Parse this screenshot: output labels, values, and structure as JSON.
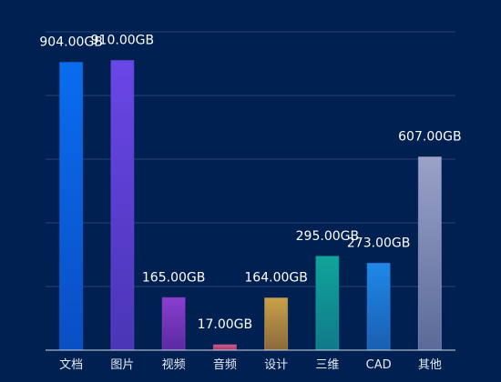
{
  "chart_data": {
    "type": "bar",
    "categories": [
      "文档",
      "图片",
      "视频",
      "音频",
      "设计",
      "三维",
      "CAD",
      "其他"
    ],
    "values": [
      904,
      910,
      165,
      17,
      164,
      295,
      273,
      607
    ],
    "value_labels": [
      "904.00GB",
      "910.00GB",
      "165.00GB",
      "17.00GB",
      "164.00GB",
      "295.00GB",
      "273.00GB",
      "607.00GB"
    ],
    "unit": "GB",
    "ylim": [
      0,
      1000
    ],
    "grid": true,
    "colors": [
      [
        "#0a6cf0",
        "#0a4fc4"
      ],
      [
        "#6a46e6",
        "#4a36b6"
      ],
      [
        "#8a3fd0",
        "#5a2aa0"
      ],
      [
        "#d65a8a",
        "#9a3a6a"
      ],
      [
        "#c9a04a",
        "#8a6a3a"
      ],
      [
        "#10a49a",
        "#107a8a"
      ],
      [
        "#1e88e8",
        "#1a5fb0"
      ],
      [
        "#9aa2c8",
        "#5a6a98"
      ]
    ]
  }
}
